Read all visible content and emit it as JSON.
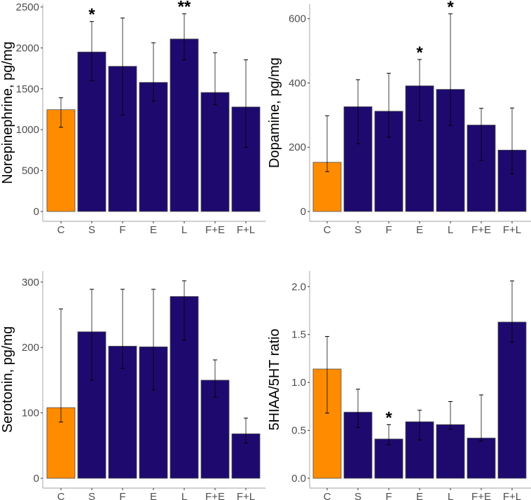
{
  "colors": {
    "control": "#ff8c00",
    "treatment": "#1e0a6e",
    "bar_border": "#4d4d4d",
    "errorbar": "#000000",
    "axis": "#b3b3b3"
  },
  "chart_data": [
    {
      "type": "bar",
      "id": "norepinephrine",
      "title": "",
      "xlabel": "",
      "ylabel": "Norepinephrine, pg/mg",
      "categories": [
        "C",
        "S",
        "F",
        "E",
        "L",
        "F+E",
        "F+L"
      ],
      "values": [
        1244,
        1950,
        1775,
        1578,
        2109,
        1455,
        1278
      ],
      "error_upper": [
        1390,
        2323,
        2365,
        2063,
        2417,
        1941,
        1855
      ],
      "error_lower": [
        1030,
        1599,
        1179,
        1350,
        1855,
        1307,
        785
      ],
      "significance": [
        "",
        "*",
        "",
        "",
        "**",
        "",
        ""
      ],
      "ylim": [
        0,
        2560
      ],
      "yticks": [
        0,
        500,
        1000,
        1500,
        2000,
        2500
      ],
      "ytick_labels": [
        "0",
        "500",
        "1000",
        "1500",
        "2000",
        "2500"
      ],
      "grid": false
    },
    {
      "type": "bar",
      "id": "dopamine",
      "title": "",
      "xlabel": "",
      "ylabel": "Dopamine, pg/mg",
      "categories": [
        "C",
        "S",
        "F",
        "E",
        "L",
        "F+E",
        "F+L"
      ],
      "values": [
        153,
        326,
        312,
        391,
        380,
        269,
        191
      ],
      "error_upper": [
        298,
        410,
        430,
        473,
        615,
        321,
        322
      ],
      "error_lower": [
        124,
        211,
        231,
        283,
        268,
        159,
        117
      ],
      "significance": [
        "",
        "",
        "",
        "*",
        "*",
        "",
        ""
      ],
      "ylim": [
        0,
        645
      ],
      "yticks": [
        0,
        200,
        400,
        600
      ],
      "ytick_labels": [
        "0",
        "200",
        "400",
        "600"
      ],
      "grid": false
    },
    {
      "type": "bar",
      "id": "serotonin",
      "title": "",
      "xlabel": "",
      "ylabel": "Serotonin, pg/mg",
      "categories": [
        "C",
        "S",
        "F",
        "E",
        "L",
        "F+E",
        "F+L"
      ],
      "values": [
        108,
        224,
        202,
        201,
        278,
        150,
        68
      ],
      "error_upper": [
        259,
        289,
        289,
        289,
        302,
        181,
        92
      ],
      "error_lower": [
        86,
        150,
        168,
        135,
        211,
        124,
        54
      ],
      "significance": [
        "",
        "",
        "",
        "",
        "",
        "",
        ""
      ],
      "ylim": [
        0,
        318
      ],
      "yticks": [
        0,
        100,
        200,
        300
      ],
      "ytick_labels": [
        "0",
        "100",
        "200",
        "300"
      ],
      "grid": false
    },
    {
      "type": "bar",
      "id": "ratio",
      "title": "",
      "xlabel": "",
      "ylabel": "5HIAA/5HT ratio",
      "categories": [
        "C",
        "S",
        "F",
        "E",
        "L",
        "F+E",
        "F+L"
      ],
      "values": [
        1.14,
        0.69,
        0.41,
        0.59,
        0.56,
        0.42,
        1.63
      ],
      "error_upper": [
        1.48,
        0.93,
        0.56,
        0.71,
        0.8,
        0.87,
        2.06
      ],
      "error_lower": [
        0.68,
        0.53,
        0.35,
        0.4,
        0.51,
        0.39,
        1.42
      ],
      "significance": [
        "",
        "",
        "*",
        "",
        "",
        "",
        ""
      ],
      "ylim": [
        0,
        2.17
      ],
      "yticks": [
        0,
        0.5,
        1.0,
        1.5,
        2.0
      ],
      "ytick_labels": [
        "0.0",
        "0.5",
        "1.0",
        "1.5",
        "2.0"
      ],
      "grid": false
    }
  ]
}
